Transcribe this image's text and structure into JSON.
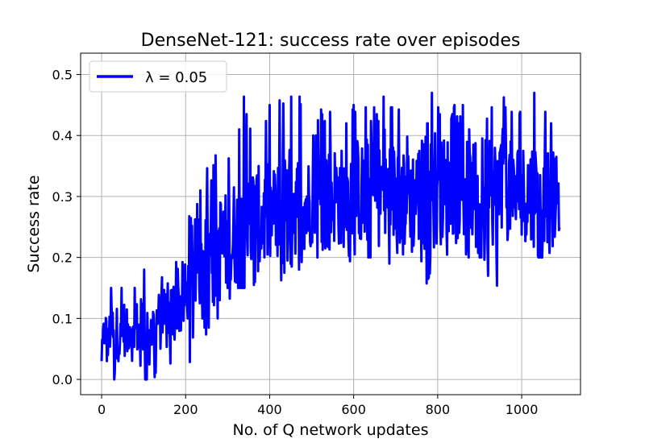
{
  "chart_data": {
    "type": "line",
    "title": "DenseNet-121: success rate over episodes",
    "xlabel": "No. of Q network updates",
    "ylabel": "Success rate",
    "xlim": [
      -50,
      1140
    ],
    "ylim": [
      -0.025,
      0.535
    ],
    "xticks": [
      0,
      200,
      400,
      600,
      800,
      1000
    ],
    "yticks": [
      0.0,
      0.1,
      0.2,
      0.3,
      0.4,
      0.5
    ],
    "xtick_labels": [
      "0",
      "200",
      "400",
      "600",
      "800",
      "1000"
    ],
    "ytick_labels": [
      "0.0",
      "0.1",
      "0.2",
      "0.3",
      "0.4",
      "0.5"
    ],
    "grid": true,
    "legend_position": "upper-left",
    "series": [
      {
        "name": "λ = 0.05",
        "color": "#0000ff",
        "x": [
          0,
          8,
          15,
          22,
          30,
          38,
          45,
          52,
          60,
          68,
          75,
          82,
          90,
          100,
          108,
          115,
          125,
          135,
          145,
          155,
          165,
          175,
          185,
          195,
          205,
          212,
          220,
          230,
          240,
          250,
          260,
          270,
          280,
          290,
          300,
          310,
          320,
          330,
          340,
          350,
          360,
          370,
          380,
          390,
          400,
          410,
          420,
          430,
          440,
          450,
          460,
          470,
          480,
          490,
          500,
          510,
          520,
          530,
          540,
          550,
          560,
          570,
          580,
          590,
          600,
          610,
          620,
          630,
          640,
          650,
          660,
          670,
          680,
          690,
          700,
          710,
          720,
          730,
          740,
          750,
          760,
          770,
          780,
          790,
          800,
          810,
          820,
          830,
          840,
          850,
          860,
          870,
          880,
          890,
          900,
          910,
          920,
          930,
          940,
          950,
          960,
          970,
          980,
          990,
          1000,
          1010,
          1020,
          1030,
          1040,
          1050,
          1060,
          1070,
          1080,
          1090
        ],
        "y": [
          0.03,
          0.09,
          0.05,
          0.1,
          0.05,
          0.08,
          0.06,
          0.09,
          0.07,
          0.09,
          0.06,
          0.09,
          0.07,
          0.1,
          0.08,
          0.09,
          0.08,
          0.1,
          0.09,
          0.1,
          0.1,
          0.12,
          0.12,
          0.13,
          0.14,
          0.16,
          0.17,
          0.19,
          0.2,
          0.19,
          0.21,
          0.2,
          0.22,
          0.21,
          0.23,
          0.22,
          0.24,
          0.23,
          0.25,
          0.24,
          0.26,
          0.25,
          0.26,
          0.27,
          0.26,
          0.28,
          0.27,
          0.26,
          0.29,
          0.28,
          0.29,
          0.27,
          0.3,
          0.28,
          0.29,
          0.3,
          0.28,
          0.31,
          0.29,
          0.3,
          0.31,
          0.29,
          0.3,
          0.31,
          0.3,
          0.32,
          0.29,
          0.31,
          0.3,
          0.31,
          0.3,
          0.32,
          0.29,
          0.31,
          0.3,
          0.31,
          0.3,
          0.32,
          0.29,
          0.31,
          0.3,
          0.31,
          0.29,
          0.32,
          0.3,
          0.31,
          0.3,
          0.31,
          0.29,
          0.32,
          0.3,
          0.31,
          0.3,
          0.31,
          0.3,
          0.32,
          0.29,
          0.31,
          0.3,
          0.31,
          0.3,
          0.32,
          0.29,
          0.31,
          0.3,
          0.31,
          0.3,
          0.31,
          0.29,
          0.3,
          0.31,
          0.3,
          0.29,
          0.3
        ],
        "lower": [
          0.03,
          0.03,
          0.03,
          0.0,
          0.0,
          0.03,
          0.03,
          0.03,
          0.03,
          0.03,
          0.03,
          0.03,
          0.03,
          0.0,
          0.0,
          0.03,
          0.0,
          0.03,
          0.03,
          0.0,
          0.03,
          0.03,
          0.03,
          0.03,
          0.1,
          0.0,
          0.1,
          0.1,
          0.1,
          0.07,
          0.1,
          0.1,
          0.1,
          0.1,
          0.15,
          0.1,
          0.15,
          0.15,
          0.15,
          0.15,
          0.15,
          0.17,
          0.2,
          0.18,
          0.2,
          0.22,
          0.2,
          0.15,
          0.2,
          0.18,
          0.2,
          0.18,
          0.2,
          0.2,
          0.22,
          0.2,
          0.2,
          0.22,
          0.2,
          0.18,
          0.2,
          0.2,
          0.22,
          0.2,
          0.15,
          0.22,
          0.15,
          0.2,
          0.2,
          0.22,
          0.2,
          0.13,
          0.18,
          0.2,
          0.2,
          0.22,
          0.2,
          0.17,
          0.2,
          0.2,
          0.2,
          0.15,
          0.17,
          0.2,
          0.18,
          0.2,
          0.15,
          0.2,
          0.22,
          0.2,
          0.22,
          0.2,
          0.2,
          0.22,
          0.2,
          0.2,
          0.17,
          0.2,
          0.15,
          0.18,
          0.2,
          0.2,
          0.22,
          0.2,
          0.22,
          0.2,
          0.2,
          0.22,
          0.2,
          0.2,
          0.22,
          0.2,
          0.22,
          0.2
        ],
        "upper": [
          0.09,
          0.15,
          0.09,
          0.15,
          0.15,
          0.15,
          0.15,
          0.15,
          0.15,
          0.12,
          0.15,
          0.15,
          0.15,
          0.18,
          0.18,
          0.18,
          0.17,
          0.15,
          0.17,
          0.15,
          0.18,
          0.2,
          0.17,
          0.2,
          0.23,
          0.3,
          0.25,
          0.3,
          0.32,
          0.35,
          0.32,
          0.37,
          0.35,
          0.37,
          0.35,
          0.4,
          0.38,
          0.42,
          0.47,
          0.4,
          0.43,
          0.45,
          0.42,
          0.42,
          0.45,
          0.4,
          0.45,
          0.47,
          0.4,
          0.47,
          0.42,
          0.47,
          0.42,
          0.45,
          0.4,
          0.4,
          0.45,
          0.42,
          0.45,
          0.42,
          0.4,
          0.45,
          0.42,
          0.42,
          0.45,
          0.42,
          0.42,
          0.45,
          0.42,
          0.45,
          0.42,
          0.47,
          0.42,
          0.45,
          0.42,
          0.45,
          0.45,
          0.42,
          0.45,
          0.42,
          0.45,
          0.42,
          0.42,
          0.5,
          0.45,
          0.42,
          0.45,
          0.42,
          0.45,
          0.42,
          0.45,
          0.42,
          0.4,
          0.45,
          0.42,
          0.45,
          0.42,
          0.45,
          0.42,
          0.5,
          0.45,
          0.42,
          0.45,
          0.42,
          0.45,
          0.42,
          0.45,
          0.47,
          0.42,
          0.42,
          0.45,
          0.42,
          0.42,
          0.38
        ]
      }
    ]
  }
}
